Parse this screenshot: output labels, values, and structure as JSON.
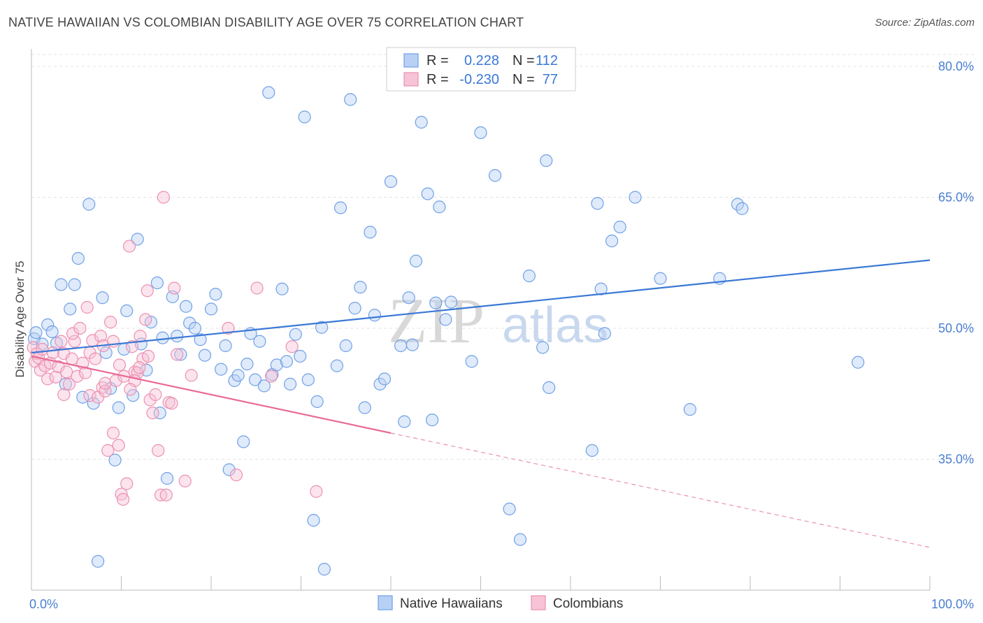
{
  "title": "NATIVE HAWAIIAN VS COLOMBIAN DISABILITY AGE OVER 75 CORRELATION CHART",
  "source": "Source: ZipAtlas.com",
  "watermark": {
    "zip": "ZIP",
    "atlas": "atlas"
  },
  "legend_box": {
    "rows": [
      {
        "r_label": "R =",
        "r_value": "0.228",
        "n_label": "N =",
        "n_value": "112"
      },
      {
        "r_label": "R =",
        "r_value": "-0.230",
        "n_label": "N =",
        "n_value": "77"
      }
    ]
  },
  "chart_data": {
    "type": "scatter",
    "xlabel": "",
    "ylabel": "Disability Age Over 75",
    "xlim": [
      0,
      100
    ],
    "ylim": [
      20,
      82
    ],
    "x_tick_labels": [
      "0.0%",
      "100.0%"
    ],
    "y_ticks": [
      35,
      50,
      65,
      80
    ],
    "y_tick_labels": [
      "35.0%",
      "50.0%",
      "65.0%",
      "80.0%"
    ],
    "grid": true,
    "legend_position": "bottom",
    "series": [
      {
        "name": "Native Hawaiians",
        "color": "#6fa0e6",
        "fill": "#b8d0f4",
        "trend": {
          "x0": 0,
          "y0": 47.2,
          "x1": 100,
          "y1": 57.8
        },
        "points": [
          [
            0.3,
            48.8
          ],
          [
            0.5,
            49.5
          ],
          [
            1.2,
            48.2
          ],
          [
            1.8,
            50.4
          ],
          [
            2.3,
            49.6
          ],
          [
            2.8,
            48.3
          ],
          [
            3.3,
            55.0
          ],
          [
            3.8,
            43.6
          ],
          [
            4.3,
            52.2
          ],
          [
            4.8,
            55.0
          ],
          [
            5.2,
            58.0
          ],
          [
            5.7,
            42.1
          ],
          [
            6.4,
            64.2
          ],
          [
            6.9,
            41.4
          ],
          [
            7.4,
            23.3
          ],
          [
            7.9,
            53.5
          ],
          [
            8.3,
            47.2
          ],
          [
            8.8,
            43.1
          ],
          [
            9.3,
            34.9
          ],
          [
            9.7,
            40.9
          ],
          [
            10.6,
            52.0
          ],
          [
            10.3,
            47.6
          ],
          [
            11.3,
            42.3
          ],
          [
            11.8,
            60.2
          ],
          [
            12.2,
            48.2
          ],
          [
            12.8,
            45.2
          ],
          [
            13.3,
            50.7
          ],
          [
            14.0,
            55.2
          ],
          [
            14.3,
            40.3
          ],
          [
            14.6,
            48.9
          ],
          [
            15.1,
            32.8
          ],
          [
            15.7,
            53.6
          ],
          [
            16.2,
            49.1
          ],
          [
            16.6,
            47.0
          ],
          [
            17.2,
            52.5
          ],
          [
            17.6,
            50.6
          ],
          [
            18.2,
            50.0
          ],
          [
            18.8,
            48.7
          ],
          [
            19.3,
            46.9
          ],
          [
            20.0,
            52.2
          ],
          [
            20.5,
            53.9
          ],
          [
            21.1,
            45.3
          ],
          [
            21.6,
            48.0
          ],
          [
            22.0,
            33.8
          ],
          [
            22.6,
            44.0
          ],
          [
            23.0,
            44.6
          ],
          [
            23.6,
            37.0
          ],
          [
            24.0,
            45.9
          ],
          [
            24.4,
            49.4
          ],
          [
            24.9,
            44.1
          ],
          [
            25.4,
            48.5
          ],
          [
            25.9,
            43.4
          ],
          [
            26.4,
            77.0
          ],
          [
            26.8,
            44.7
          ],
          [
            27.3,
            45.8
          ],
          [
            27.9,
            54.5
          ],
          [
            28.4,
            46.2
          ],
          [
            28.8,
            43.6
          ],
          [
            29.4,
            49.3
          ],
          [
            29.9,
            46.8
          ],
          [
            30.4,
            74.2
          ],
          [
            30.8,
            44.1
          ],
          [
            31.4,
            28.0
          ],
          [
            31.8,
            41.6
          ],
          [
            32.3,
            50.1
          ],
          [
            32.6,
            22.4
          ],
          [
            34.0,
            45.7
          ],
          [
            34.4,
            63.8
          ],
          [
            35.0,
            48.0
          ],
          [
            35.5,
            76.2
          ],
          [
            36.0,
            52.3
          ],
          [
            36.6,
            54.7
          ],
          [
            37.1,
            40.9
          ],
          [
            37.7,
            61.0
          ],
          [
            38.2,
            51.5
          ],
          [
            38.8,
            43.6
          ],
          [
            39.3,
            44.2
          ],
          [
            40.0,
            66.8
          ],
          [
            41.1,
            48.0
          ],
          [
            41.5,
            39.3
          ],
          [
            42.4,
            48.1
          ],
          [
            42.0,
            53.5
          ],
          [
            42.8,
            57.7
          ],
          [
            43.4,
            73.6
          ],
          [
            44.1,
            65.4
          ],
          [
            44.6,
            39.5
          ],
          [
            45.0,
            52.9
          ],
          [
            45.4,
            63.9
          ],
          [
            46.1,
            51.0
          ],
          [
            46.7,
            53.0
          ],
          [
            49.0,
            46.2
          ],
          [
            50.0,
            72.4
          ],
          [
            51.6,
            67.5
          ],
          [
            53.2,
            29.3
          ],
          [
            54.4,
            25.8
          ],
          [
            55.4,
            56.0
          ],
          [
            56.9,
            47.8
          ],
          [
            57.3,
            69.2
          ],
          [
            57.6,
            43.2
          ],
          [
            62.4,
            36.0
          ],
          [
            63.0,
            64.3
          ],
          [
            63.4,
            54.5
          ],
          [
            63.8,
            49.4
          ],
          [
            64.6,
            60.0
          ],
          [
            65.5,
            61.6
          ],
          [
            67.2,
            65.0
          ],
          [
            70.0,
            55.7
          ],
          [
            73.3,
            40.7
          ],
          [
            76.6,
            55.7
          ],
          [
            78.6,
            64.2
          ],
          [
            79.1,
            63.7
          ],
          [
            92.0,
            46.1
          ]
        ]
      },
      {
        "name": "Colombians",
        "color": "#ec8fb0",
        "fill": "#f6c4d6",
        "trend": {
          "x0": 0,
          "y0": 46.8,
          "x1": 40,
          "y1": 38.0
        },
        "trend_ext": {
          "x0": 40,
          "y0": 38.0,
          "x1": 100,
          "y1": 24.9
        },
        "points": [
          [
            0.2,
            47.8
          ],
          [
            0.4,
            46.2
          ],
          [
            0.6,
            47.1
          ],
          [
            0.8,
            46.6
          ],
          [
            1.0,
            45.2
          ],
          [
            1.2,
            47.6
          ],
          [
            1.5,
            45.7
          ],
          [
            1.8,
            44.2
          ],
          [
            2.1,
            46.0
          ],
          [
            2.4,
            47.2
          ],
          [
            2.7,
            44.4
          ],
          [
            3.0,
            45.6
          ],
          [
            3.3,
            48.5
          ],
          [
            3.6,
            47.1
          ],
          [
            3.9,
            45.0
          ],
          [
            3.6,
            42.4
          ],
          [
            4.2,
            43.6
          ],
          [
            4.5,
            46.5
          ],
          [
            4.8,
            48.5
          ],
          [
            4.6,
            49.4
          ],
          [
            5.1,
            44.5
          ],
          [
            5.4,
            50.0
          ],
          [
            5.7,
            46.0
          ],
          [
            6.0,
            44.9
          ],
          [
            6.2,
            52.4
          ],
          [
            6.5,
            47.2
          ],
          [
            6.8,
            48.6
          ],
          [
            6.5,
            42.3
          ],
          [
            7.1,
            46.5
          ],
          [
            7.4,
            42.1
          ],
          [
            7.7,
            49.1
          ],
          [
            7.9,
            43.2
          ],
          [
            8.2,
            42.8
          ],
          [
            8.2,
            43.7
          ],
          [
            8.5,
            36.0
          ],
          [
            8.8,
            50.7
          ],
          [
            9.1,
            48.5
          ],
          [
            9.1,
            38.0
          ],
          [
            9.4,
            44.0
          ],
          [
            9.7,
            36.6
          ],
          [
            10.0,
            31.0
          ],
          [
            10.3,
            44.5
          ],
          [
            10.6,
            32.2
          ],
          [
            10.2,
            30.4
          ],
          [
            10.9,
            59.4
          ],
          [
            11.2,
            47.9
          ],
          [
            11.5,
            45.0
          ],
          [
            11.8,
            44.9
          ],
          [
            11.5,
            44.0
          ],
          [
            12.1,
            49.1
          ],
          [
            12.4,
            46.5
          ],
          [
            12.7,
            51.0
          ],
          [
            12.9,
            54.3
          ],
          [
            13.2,
            41.8
          ],
          [
            13.5,
            40.3
          ],
          [
            13.8,
            42.4
          ],
          [
            14.1,
            36.0
          ],
          [
            14.4,
            30.9
          ],
          [
            14.7,
            65.0
          ],
          [
            15.0,
            30.9
          ],
          [
            15.3,
            41.5
          ],
          [
            15.6,
            41.4
          ],
          [
            15.9,
            54.6
          ],
          [
            16.2,
            47.0
          ],
          [
            17.1,
            32.5
          ],
          [
            17.8,
            44.6
          ],
          [
            21.9,
            50.0
          ],
          [
            22.8,
            33.2
          ],
          [
            25.1,
            54.6
          ],
          [
            26.7,
            44.5
          ],
          [
            29.0,
            47.9
          ],
          [
            31.7,
            31.3
          ],
          [
            12.0,
            45.5
          ],
          [
            13.0,
            46.8
          ],
          [
            11.0,
            43.0
          ],
          [
            9.8,
            45.8
          ],
          [
            8.0,
            48.0
          ]
        ]
      }
    ]
  }
}
